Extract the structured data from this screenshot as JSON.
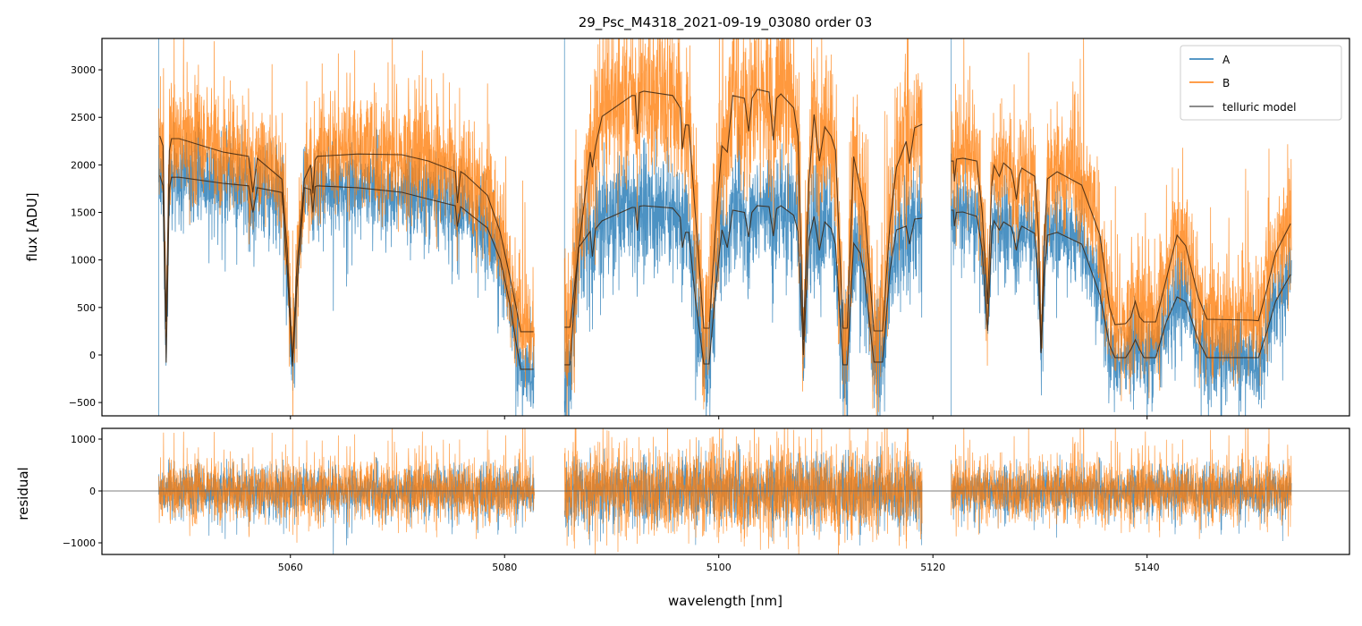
{
  "chart_data": [
    {
      "type": "line",
      "panel": "spectrum",
      "title": "29_Psc_M4318_2021-09-19_03080  order 03",
      "xlabel": "wavelength [nm]",
      "ylabel": "flux [ADU]",
      "xlim": [
        5042.4,
        5158.9
      ],
      "ylim": [
        -640,
        3330
      ],
      "xticks": [
        5060,
        5080,
        5100,
        5120,
        5140
      ],
      "yticks": [
        -500,
        0,
        500,
        1000,
        1500,
        2000,
        2500,
        3000
      ],
      "legend": {
        "placement": "top-right",
        "entries": [
          "A",
          "B",
          "telluric model"
        ]
      },
      "colors": {
        "A": "#1f77b4",
        "B": "#ff7f0e",
        "model": "#3b2410"
      },
      "segments": [
        [
          5047.7,
          5082.8
        ],
        [
          5085.6,
          5119.0
        ],
        [
          5121.7,
          5153.5
        ]
      ],
      "noise_sigma": {
        "A": 230,
        "B": 300
      },
      "model_columns": [
        "wavelength",
        "B",
        "A"
      ],
      "model": [
        [
          [
            5047.8,
            2305,
            1890
          ],
          [
            5048.1,
            2200,
            1780
          ],
          [
            5048.4,
            350,
            -80
          ],
          [
            5048.7,
            2150,
            1750
          ],
          [
            5048.9,
            2276,
            1870
          ],
          [
            5049.6,
            2276,
            1870
          ],
          [
            5053.7,
            2135,
            1806
          ],
          [
            5056.1,
            2090,
            1780
          ],
          [
            5056.5,
            1710,
            1500
          ],
          [
            5056.9,
            2070,
            1760
          ],
          [
            5059.2,
            1850,
            1710
          ],
          [
            5059.7,
            1100,
            900
          ],
          [
            5060.2,
            -75,
            -120
          ],
          [
            5060.6,
            910,
            700
          ],
          [
            5061.3,
            1850,
            1760
          ],
          [
            5061.9,
            2000,
            1740
          ],
          [
            5062.1,
            1700,
            1500
          ],
          [
            5062.3,
            2050,
            1770
          ],
          [
            5062.5,
            2090,
            1780
          ],
          [
            5066.3,
            2115,
            1760
          ],
          [
            5070.4,
            2107,
            1712
          ],
          [
            5072.9,
            2040,
            1640
          ],
          [
            5075.4,
            1930,
            1570
          ],
          [
            5075.6,
            1600,
            1350
          ],
          [
            5075.9,
            1930,
            1560
          ],
          [
            5076.3,
            1900,
            1524
          ],
          [
            5078.4,
            1680,
            1336
          ],
          [
            5079.6,
            1290,
            1006
          ],
          [
            5080.5,
            820,
            536
          ],
          [
            5081.1,
            490,
            113
          ],
          [
            5081.5,
            245,
            -150
          ],
          [
            5082.7,
            245,
            -150
          ]
        ],
        [
          [
            5085.6,
            292,
            -103
          ],
          [
            5086.1,
            292,
            -103
          ],
          [
            5086.9,
            1100,
            1130
          ],
          [
            5088.0,
            2135,
            1300
          ],
          [
            5088.2,
            1975,
            1035
          ],
          [
            5088.5,
            2200,
            1330
          ],
          [
            5089.1,
            2510,
            1411
          ],
          [
            5091.9,
            2730,
            1552
          ],
          [
            5092.2,
            2730,
            1552
          ],
          [
            5092.4,
            2323,
            1308
          ],
          [
            5092.6,
            2760,
            1565
          ],
          [
            5093.0,
            2775,
            1571
          ],
          [
            5095.7,
            2730,
            1545
          ],
          [
            5096.4,
            2600,
            1450
          ],
          [
            5096.6,
            2164,
            1130
          ],
          [
            5096.9,
            2420,
            1290
          ],
          [
            5097.2,
            2418,
            1290
          ],
          [
            5097.8,
            1500,
            600
          ],
          [
            5098.6,
            282,
            -94
          ],
          [
            5099.1,
            282,
            -94
          ],
          [
            5099.8,
            1500,
            800
          ],
          [
            5100.3,
            2200,
            1317
          ],
          [
            5100.8,
            2135,
            1130
          ],
          [
            5101.3,
            2730,
            1524
          ],
          [
            5102.4,
            2700,
            1500
          ],
          [
            5102.8,
            2352,
            1242
          ],
          [
            5103.1,
            2700,
            1500
          ],
          [
            5103.6,
            2794,
            1571
          ],
          [
            5104.7,
            2766,
            1560
          ],
          [
            5105.1,
            2258,
            1250
          ],
          [
            5105.4,
            2700,
            1540
          ],
          [
            5105.8,
            2747,
            1571
          ],
          [
            5107.0,
            2600,
            1470
          ],
          [
            5107.4,
            2300,
            1300
          ],
          [
            5107.9,
            160,
            0
          ],
          [
            5108.4,
            1800,
            1200
          ],
          [
            5108.9,
            2530,
            1458
          ],
          [
            5109.4,
            2040,
            1100
          ],
          [
            5109.9,
            2400,
            1400
          ],
          [
            5110.5,
            2300,
            1330
          ],
          [
            5110.9,
            2154,
            1166
          ],
          [
            5111.6,
            282,
            -103
          ],
          [
            5112.0,
            282,
            -103
          ],
          [
            5112.6,
            2088,
            1176
          ],
          [
            5113.2,
            1760,
            1072
          ],
          [
            5113.6,
            1543,
            818
          ],
          [
            5114.5,
            254,
            -75
          ],
          [
            5115.3,
            254,
            -75
          ],
          [
            5116.0,
            1400,
            900
          ],
          [
            5116.6,
            1975,
            1317
          ],
          [
            5117.5,
            2248,
            1355
          ],
          [
            5117.8,
            2013,
            1166
          ],
          [
            5118.3,
            2390,
            1430
          ],
          [
            5119.0,
            2427,
            1440
          ]
        ],
        [
          [
            5121.7,
            2040,
            1524
          ],
          [
            5121.9,
            2040,
            1524
          ],
          [
            5122.0,
            1825,
            1355
          ],
          [
            5122.2,
            2060,
            1500
          ],
          [
            5122.8,
            2070,
            1505
          ],
          [
            5124.1,
            2040,
            1458
          ],
          [
            5124.6,
            1500,
            1100
          ],
          [
            5125.1,
            536,
            254
          ],
          [
            5125.5,
            1800,
            1300
          ],
          [
            5125.7,
            1995,
            1411
          ],
          [
            5126.2,
            1880,
            1317
          ],
          [
            5126.6,
            2020,
            1400
          ],
          [
            5127.3,
            1950,
            1350
          ],
          [
            5127.5,
            1853,
            1270
          ],
          [
            5127.8,
            1637,
            1100
          ],
          [
            5128.1,
            1900,
            1300
          ],
          [
            5128.3,
            1966,
            1355
          ],
          [
            5129.5,
            1880,
            1280
          ],
          [
            5129.9,
            1200,
            700
          ],
          [
            5130.1,
            38,
            19
          ],
          [
            5130.4,
            1200,
            800
          ],
          [
            5130.7,
            1853,
            1260
          ],
          [
            5131.6,
            1928,
            1290
          ],
          [
            5133.9,
            1787,
            1166
          ],
          [
            5135.6,
            1260,
            630
          ],
          [
            5136.5,
            500,
            100
          ],
          [
            5137.0,
            320,
            -28
          ],
          [
            5138.0,
            330,
            -28
          ],
          [
            5138.5,
            400,
            60
          ],
          [
            5138.9,
            564,
            160
          ],
          [
            5139.3,
            400,
            60
          ],
          [
            5139.7,
            348,
            -28
          ],
          [
            5140.8,
            348,
            -28
          ],
          [
            5141.8,
            800,
            350
          ],
          [
            5142.8,
            1260,
            611
          ],
          [
            5143.6,
            1150,
            560
          ],
          [
            5144.8,
            600,
            150
          ],
          [
            5145.6,
            376,
            -28
          ],
          [
            5149.8,
            367,
            -28
          ],
          [
            5150.4,
            360,
            -28
          ],
          [
            5151.2,
            700,
            250
          ],
          [
            5152.0,
            1072,
            564
          ],
          [
            5153.4,
            1383,
            847
          ]
        ]
      ]
    },
    {
      "type": "line",
      "panel": "residual",
      "xlabel": "wavelength [nm]",
      "ylabel": "residual",
      "xlim": [
        5042.4,
        5158.9
      ],
      "ylim": [
        -1224,
        1207
      ],
      "xticks": [
        5060,
        5080,
        5100,
        5120,
        5140
      ],
      "yticks": [
        -1000,
        0,
        1000
      ],
      "zero_line": 0
    }
  ]
}
